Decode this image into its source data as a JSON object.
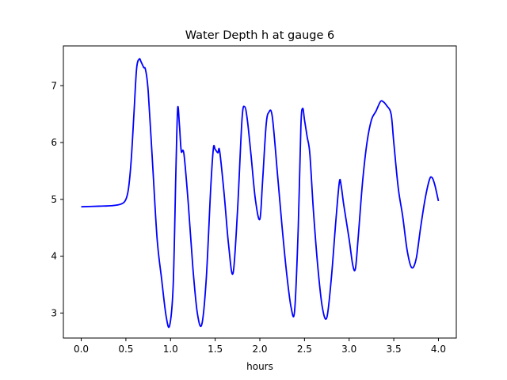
{
  "chart_data": {
    "type": "line",
    "title": "Water Depth h at gauge 6",
    "xlabel": "hours",
    "ylabel": "",
    "xlim": [
      -0.2,
      4.2
    ],
    "ylim": [
      2.56,
      7.7
    ],
    "xticks": [
      0.0,
      0.5,
      1.0,
      1.5,
      2.0,
      2.5,
      3.0,
      3.5,
      4.0
    ],
    "xtick_labels": [
      "0.0",
      "0.5",
      "1.0",
      "1.5",
      "2.0",
      "2.5",
      "3.0",
      "3.5",
      "4.0"
    ],
    "yticks": [
      3,
      4,
      5,
      6,
      7
    ],
    "ytick_labels": [
      "3",
      "4",
      "5",
      "6",
      "7"
    ],
    "grid": false,
    "series": [
      {
        "color": "#0000ff",
        "x": [
          0.0,
          0.2,
          0.35,
          0.45,
          0.5,
          0.53,
          0.56,
          0.59,
          0.62,
          0.65,
          0.67,
          0.7,
          0.72,
          0.75,
          0.8,
          0.85,
          0.9,
          0.95,
          0.99,
          1.03,
          1.06,
          1.08,
          1.1,
          1.12,
          1.15,
          1.2,
          1.25,
          1.3,
          1.35,
          1.4,
          1.45,
          1.48,
          1.5,
          1.53,
          1.55,
          1.6,
          1.65,
          1.7,
          1.75,
          1.8,
          1.83,
          1.86,
          1.9,
          1.95,
          2.0,
          2.03,
          2.07,
          2.1,
          2.14,
          2.2,
          2.25,
          2.3,
          2.35,
          2.39,
          2.43,
          2.46,
          2.48,
          2.5,
          2.53,
          2.56,
          2.6,
          2.65,
          2.7,
          2.75,
          2.8,
          2.85,
          2.89,
          2.91,
          2.94,
          3.0,
          3.04,
          3.07,
          3.1,
          3.15,
          3.2,
          3.25,
          3.3,
          3.35,
          3.38,
          3.42,
          3.47,
          3.5,
          3.55,
          3.6,
          3.65,
          3.7,
          3.75,
          3.8,
          3.85,
          3.9,
          3.93,
          3.96,
          4.0
        ],
        "y": [
          4.87,
          4.88,
          4.89,
          4.92,
          5.0,
          5.2,
          5.7,
          6.5,
          7.3,
          7.47,
          7.42,
          7.32,
          7.28,
          6.9,
          5.6,
          4.3,
          3.6,
          2.95,
          2.78,
          3.5,
          5.5,
          6.6,
          6.3,
          5.85,
          5.8,
          4.9,
          3.8,
          3.0,
          2.8,
          3.6,
          5.2,
          5.9,
          5.88,
          5.82,
          5.85,
          5.1,
          4.2,
          3.7,
          4.8,
          6.4,
          6.63,
          6.4,
          5.8,
          5.0,
          4.65,
          5.3,
          6.3,
          6.53,
          6.45,
          5.4,
          4.5,
          3.7,
          3.1,
          3.05,
          4.5,
          6.3,
          6.6,
          6.4,
          6.1,
          5.8,
          4.8,
          3.8,
          3.1,
          2.92,
          3.6,
          4.6,
          5.3,
          5.25,
          4.9,
          4.3,
          3.85,
          3.78,
          4.3,
          5.3,
          6.0,
          6.4,
          6.55,
          6.72,
          6.72,
          6.65,
          6.5,
          6.0,
          5.2,
          4.7,
          4.1,
          3.8,
          3.95,
          4.5,
          5.0,
          5.35,
          5.38,
          5.25,
          4.97
        ]
      }
    ]
  }
}
